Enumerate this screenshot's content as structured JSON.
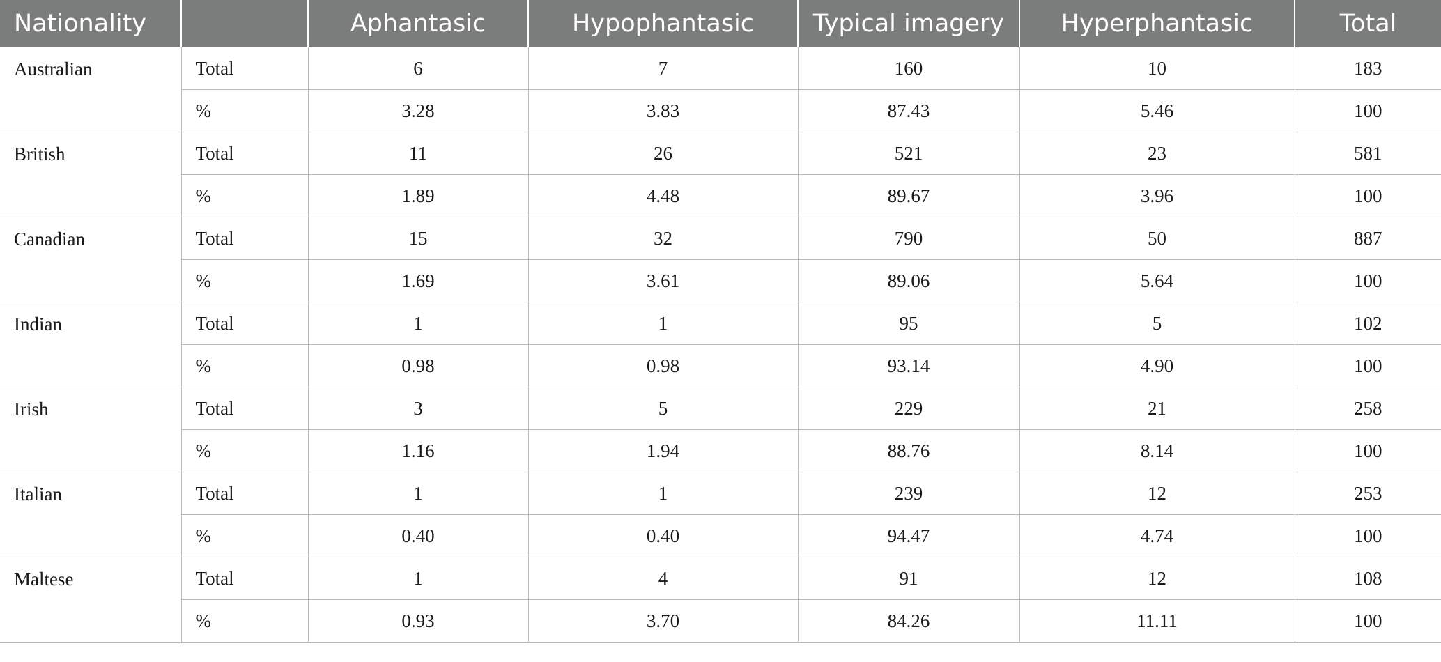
{
  "table": {
    "headers": [
      "Nationality",
      "",
      "Aphantasic",
      "Hypophantasic",
      "Typical imagery",
      "Hyperphantasic",
      "Total"
    ],
    "groups": [
      {
        "nationality": "Australian",
        "rows": [
          {
            "kind": "Total",
            "values": [
              "6",
              "7",
              "160",
              "10",
              "183"
            ]
          },
          {
            "kind": "%",
            "values": [
              "3.28",
              "3.83",
              "87.43",
              "5.46",
              "100"
            ]
          }
        ]
      },
      {
        "nationality": "British",
        "rows": [
          {
            "kind": "Total",
            "values": [
              "11",
              "26",
              "521",
              "23",
              "581"
            ]
          },
          {
            "kind": "%",
            "values": [
              "1.89",
              "4.48",
              "89.67",
              "3.96",
              "100"
            ]
          }
        ]
      },
      {
        "nationality": "Canadian",
        "rows": [
          {
            "kind": "Total",
            "values": [
              "15",
              "32",
              "790",
              "50",
              "887"
            ]
          },
          {
            "kind": "%",
            "values": [
              "1.69",
              "3.61",
              "89.06",
              "5.64",
              "100"
            ]
          }
        ]
      },
      {
        "nationality": "Indian",
        "rows": [
          {
            "kind": "Total",
            "values": [
              "1",
              "1",
              "95",
              "5",
              "102"
            ]
          },
          {
            "kind": "%",
            "values": [
              "0.98",
              "0.98",
              "93.14",
              "4.90",
              "100"
            ]
          }
        ]
      },
      {
        "nationality": "Irish",
        "rows": [
          {
            "kind": "Total",
            "values": [
              "3",
              "5",
              "229",
              "21",
              "258"
            ]
          },
          {
            "kind": "%",
            "values": [
              "1.16",
              "1.94",
              "88.76",
              "8.14",
              "100"
            ]
          }
        ]
      },
      {
        "nationality": "Italian",
        "rows": [
          {
            "kind": "Total",
            "values": [
              "1",
              "1",
              "239",
              "12",
              "253"
            ]
          },
          {
            "kind": "%",
            "values": [
              "0.40",
              "0.40",
              "94.47",
              "4.74",
              "100"
            ]
          }
        ]
      },
      {
        "nationality": "Maltese",
        "rows": [
          {
            "kind": "Total",
            "values": [
              "1",
              "4",
              "91",
              "12",
              "108"
            ]
          },
          {
            "kind": "%",
            "values": [
              "0.93",
              "3.70",
              "84.26",
              "11.11",
              "100"
            ]
          }
        ]
      }
    ]
  }
}
